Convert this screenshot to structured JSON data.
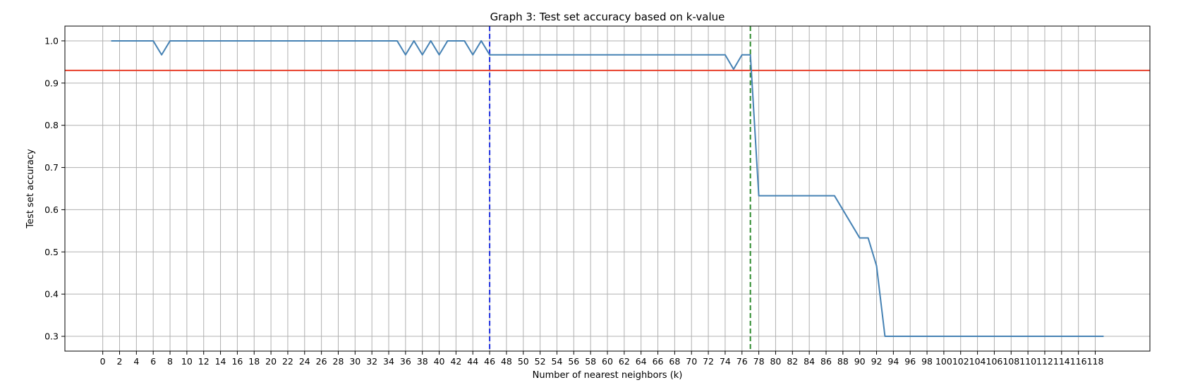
{
  "chart_data": {
    "type": "line",
    "title": "Graph 3: Test set accuracy based on k-value",
    "xlabel": "Number of nearest neighbors (k)",
    "ylabel": "Test set accuracy",
    "xlim": [
      -4.5,
      124.5
    ],
    "ylim": [
      0.265,
      1.035
    ],
    "grid": true,
    "x_ticks": [
      0,
      2,
      4,
      6,
      8,
      10,
      12,
      14,
      16,
      18,
      20,
      22,
      24,
      26,
      28,
      30,
      32,
      34,
      36,
      38,
      40,
      42,
      44,
      46,
      48,
      50,
      52,
      54,
      56,
      58,
      60,
      62,
      64,
      66,
      68,
      70,
      72,
      74,
      76,
      78,
      80,
      82,
      84,
      86,
      88,
      90,
      92,
      94,
      96,
      98,
      100,
      102,
      104,
      106,
      108,
      110,
      112,
      114,
      116,
      118
    ],
    "y_ticks": [
      0.3,
      0.4,
      0.5,
      0.6,
      0.7,
      0.8,
      0.9,
      1.0
    ],
    "y_tick_labels": [
      "0.3",
      "0.4",
      "0.5",
      "0.6",
      "0.7",
      "0.8",
      "0.9",
      "1.0"
    ],
    "series": [
      {
        "color": "#4682b4",
        "points": [
          [
            1,
            1.0
          ],
          [
            6,
            1.0
          ],
          [
            7,
            0.967
          ],
          [
            8,
            1.0
          ],
          [
            35,
            1.0
          ],
          [
            36,
            0.967
          ],
          [
            37,
            1.0
          ],
          [
            38,
            0.967
          ],
          [
            39,
            1.0
          ],
          [
            40,
            0.967
          ],
          [
            41,
            1.0
          ],
          [
            43,
            1.0
          ],
          [
            44,
            0.967
          ],
          [
            45,
            1.0
          ],
          [
            46,
            0.967
          ],
          [
            74,
            0.967
          ],
          [
            75,
            0.933
          ],
          [
            76,
            0.967
          ],
          [
            77,
            0.967
          ],
          [
            78,
            0.633
          ],
          [
            87,
            0.633
          ],
          [
            90,
            0.533
          ],
          [
            91,
            0.533
          ],
          [
            92,
            0.467
          ],
          [
            93,
            0.3
          ],
          [
            119,
            0.3
          ]
        ]
      }
    ],
    "reference_lines": [
      {
        "orientation": "horizontal",
        "y": 0.93,
        "color": "#e8412c",
        "style": "solid"
      },
      {
        "orientation": "vertical",
        "x": 46,
        "color": "#1f2fe0",
        "style": "dashed"
      },
      {
        "orientation": "vertical",
        "x": 77,
        "color": "#2e8b2e",
        "style": "dashed"
      }
    ]
  }
}
